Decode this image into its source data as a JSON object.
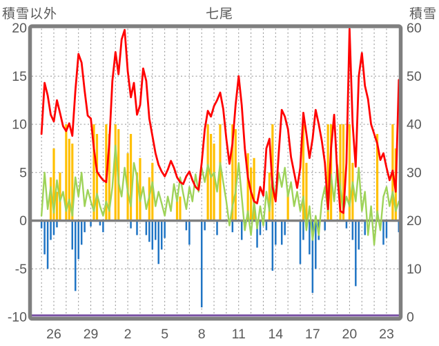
{
  "header": {
    "left_axis_title": "積雪以外",
    "station_title": "七尾",
    "right_axis_title": "積雪"
  },
  "colors": {
    "frame": "#7F7F7F",
    "grid": "#8C8C8C",
    "zero_axis": "#7F7F7F",
    "text": "#595959",
    "red_series": "#FF0000",
    "green_series": "#9ED359",
    "orange_series": "#FFC000",
    "blue_series": "#1F74C4",
    "purple_series": "#7B52A5",
    "background": "#FFFFFF"
  },
  "chart_data": {
    "type": "line",
    "title": "七尾",
    "left_axis": {
      "title": "積雪以外",
      "min": -10,
      "max": 20,
      "ticks": [
        20,
        15,
        10,
        5,
        0,
        -5,
        -10
      ]
    },
    "right_axis": {
      "title": "積雪",
      "min": 0,
      "max": 60,
      "ticks": [
        60,
        50,
        40,
        30,
        20,
        10,
        0
      ]
    },
    "x_axis": {
      "labels": [
        "26",
        "29",
        "2",
        "5",
        "8",
        "11",
        "14",
        "17",
        "20",
        "23"
      ],
      "label_positions": [
        26,
        29,
        32,
        35,
        38,
        41,
        44,
        47,
        50,
        53
      ],
      "gridline_days_start": 25,
      "gridline_days_end": 53,
      "grid": true
    },
    "x_start": 25.0,
    "x_step": 0.25,
    "series": [
      {
        "name": "red-line",
        "type": "line",
        "axis": "left",
        "color_key": "red_series",
        "values": [
          9.0,
          14.3,
          13.0,
          11.0,
          10.3,
          12.5,
          11.2,
          9.8,
          9.3,
          10.1,
          8.8,
          13.5,
          17.3,
          16.4,
          13.5,
          10.9,
          10.6,
          7.5,
          5.1,
          4.6,
          4.2,
          4.0,
          8.0,
          14.5,
          17.5,
          15.2,
          18.8,
          19.8,
          15.5,
          12.8,
          14.3,
          11.0,
          12.0,
          15.8,
          14.5,
          10.6,
          8.8,
          7.0,
          5.8,
          5.1,
          4.6,
          5.3,
          6.2,
          5.5,
          4.5,
          4.0,
          3.8,
          4.6,
          5.1,
          4.2,
          3.5,
          3.2,
          6.0,
          9.5,
          11.4,
          10.8,
          11.9,
          12.5,
          13.3,
          11.6,
          8.5,
          5.9,
          8.0,
          12.0,
          15.0,
          12.0,
          7.5,
          4.5,
          3.0,
          2.0,
          1.8,
          3.5,
          2.6,
          7.5,
          8.5,
          3.5,
          2.0,
          7.0,
          11.5,
          10.8,
          9.5,
          6.6,
          5.0,
          3.4,
          5.5,
          11.2,
          9.0,
          6.5,
          8.5,
          11.5,
          10.0,
          8.3,
          6.0,
          1.2,
          7.5,
          11.0,
          5.0,
          1.0,
          0.8,
          6.0,
          19.9,
          10.0,
          5.6,
          15.0,
          17.4,
          14.0,
          12.6,
          10.0,
          9.0,
          8.0,
          6.3,
          7.0,
          5.5,
          4.2,
          5.2,
          3.0,
          14.6
        ]
      },
      {
        "name": "green-line",
        "type": "line",
        "axis": "left",
        "color_key": "green_series",
        "values": [
          0.5,
          5.0,
          1.2,
          3.5,
          0.8,
          4.2,
          2.0,
          3.0,
          1.0,
          2.2,
          0.5,
          4.5,
          2.5,
          5.0,
          1.5,
          3.2,
          2.0,
          1.0,
          2.8,
          1.5,
          0.5,
          2.0,
          1.0,
          3.5,
          7.8,
          4.0,
          2.5,
          5.5,
          3.0,
          1.5,
          6.0,
          4.5,
          2.0,
          3.5,
          1.2,
          2.5,
          4.0,
          1.5,
          3.0,
          1.8,
          0.5,
          2.5,
          1.0,
          3.8,
          2.0,
          4.5,
          2.8,
          1.2,
          3.5,
          2.0,
          4.8,
          3.0,
          5.5,
          4.0,
          5.8,
          4.5,
          5.0,
          3.0,
          6.0,
          4.0,
          2.0,
          -0.5,
          1.5,
          3.0,
          6.0,
          2.5,
          -1.0,
          1.0,
          -1.5,
          2.0,
          -0.8,
          1.5,
          -0.5,
          3.0,
          1.0,
          4.5,
          2.0,
          5.0,
          3.5,
          5.5,
          2.5,
          4.0,
          1.5,
          3.0,
          1.0,
          2.5,
          -1.0,
          1.5,
          -2.0,
          0.5,
          -1.5,
          2.0,
          3.5,
          1.0,
          4.8,
          2.0,
          5.8,
          3.5,
          1.0,
          2.5,
          1.5,
          4.0,
          2.0,
          5.5,
          1.0,
          3.0,
          -1.5,
          1.5,
          -2.5,
          1.0,
          -1.0,
          2.5,
          3.5,
          1.5,
          3.0,
          1.0,
          2.0
        ]
      },
      {
        "name": "orange-bars",
        "type": "bar",
        "axis": "left",
        "color_key": "orange_series",
        "points": [
          [
            25.75,
            4.5
          ],
          [
            26.0,
            7.5
          ],
          [
            26.25,
            3.0
          ],
          [
            26.5,
            5.0
          ],
          [
            27.0,
            10
          ],
          [
            27.25,
            8.5
          ],
          [
            27.5,
            8.0
          ],
          [
            29.25,
            10
          ],
          [
            29.5,
            9.0
          ],
          [
            30.25,
            10
          ],
          [
            30.5,
            9.0
          ],
          [
            31.0,
            10
          ],
          [
            31.25,
            9.5
          ],
          [
            32.0,
            7.0
          ],
          [
            32.25,
            9.0
          ],
          [
            32.75,
            5.0
          ],
          [
            33.0,
            6.5
          ],
          [
            33.75,
            4.5
          ],
          [
            34.0,
            6.0
          ],
          [
            36.0,
            2.0
          ],
          [
            36.25,
            2.5
          ],
          [
            38.5,
            10
          ],
          [
            38.75,
            9.0
          ],
          [
            39.0,
            8.0
          ],
          [
            39.5,
            10
          ],
          [
            40.5,
            10
          ],
          [
            40.75,
            9.5
          ],
          [
            41.75,
            7.0
          ],
          [
            42.0,
            5.5
          ],
          [
            42.25,
            6.5
          ],
          [
            43.5,
            5.0
          ],
          [
            43.75,
            10
          ],
          [
            45.0,
            3.0
          ],
          [
            46.25,
            10
          ],
          [
            46.5,
            6.0
          ],
          [
            48.25,
            10
          ],
          [
            48.5,
            10
          ],
          [
            49.25,
            10
          ],
          [
            49.5,
            10
          ],
          [
            50.0,
            10
          ],
          [
            50.25,
            6.0
          ],
          [
            52.25,
            9.0
          ],
          [
            53.5,
            10
          ],
          [
            53.75,
            7.5
          ]
        ]
      },
      {
        "name": "blue-bars",
        "type": "bar",
        "axis": "left",
        "color_key": "blue_series",
        "points": [
          [
            25.0,
            -0.8
          ],
          [
            25.25,
            -3.5
          ],
          [
            25.5,
            -5.0
          ],
          [
            25.75,
            -2.0
          ],
          [
            26.0,
            -1.5
          ],
          [
            26.25,
            -0.7
          ],
          [
            27.5,
            -3.0
          ],
          [
            27.75,
            -7.3
          ],
          [
            28.0,
            -4.0
          ],
          [
            28.25,
            -2.5
          ],
          [
            28.5,
            -1.2
          ],
          [
            29.0,
            -0.6
          ],
          [
            29.75,
            -0.5
          ],
          [
            30.0,
            -1.2
          ],
          [
            32.25,
            -0.8
          ],
          [
            32.75,
            -1.5
          ],
          [
            33.5,
            -1.5
          ],
          [
            33.75,
            -2.2
          ],
          [
            34.0,
            -3.0
          ],
          [
            34.25,
            -2.0
          ],
          [
            34.5,
            -4.5
          ],
          [
            34.75,
            -3.0
          ],
          [
            35.0,
            -1.8
          ],
          [
            36.75,
            -1.0
          ],
          [
            37.0,
            -2.5
          ],
          [
            38.0,
            -9.0
          ],
          [
            38.25,
            -1.0
          ],
          [
            39.25,
            -1.5
          ],
          [
            40.5,
            -1.2
          ],
          [
            41.25,
            -2.0
          ],
          [
            41.5,
            -1.0
          ],
          [
            42.5,
            -2.8
          ],
          [
            42.75,
            -1.5
          ],
          [
            43.25,
            -1.0
          ],
          [
            43.75,
            -5.2
          ],
          [
            44.0,
            -2.5
          ],
          [
            44.5,
            -2.5
          ],
          [
            44.75,
            -1.5
          ],
          [
            46.0,
            -4.5
          ],
          [
            46.25,
            -2.0
          ],
          [
            46.75,
            -3.5
          ],
          [
            47.0,
            -7.5
          ],
          [
            47.25,
            -5.0
          ],
          [
            47.5,
            -2.0
          ],
          [
            48.0,
            -1.0
          ],
          [
            49.75,
            -0.8
          ],
          [
            50.25,
            -2.0
          ],
          [
            50.5,
            -6.8
          ],
          [
            50.75,
            -3.0
          ],
          [
            51.25,
            -1.5
          ],
          [
            52.75,
            -2.5
          ],
          [
            53.0,
            -1.8
          ],
          [
            54.0,
            -1.2
          ]
        ]
      },
      {
        "name": "purple-line",
        "type": "line",
        "axis": "right",
        "color_key": "purple_series",
        "constant_value": 0
      }
    ]
  }
}
